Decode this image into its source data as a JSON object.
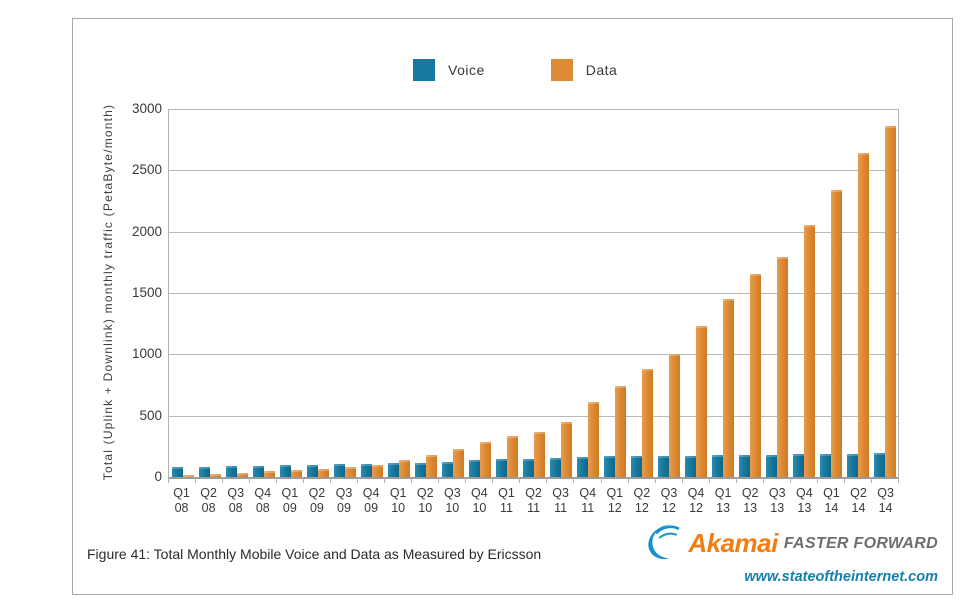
{
  "figure": {
    "caption": "Figure 41: Total Monthly Mobile Voice and Data as Measured by Ericsson"
  },
  "branding": {
    "logo_text": "Akamai",
    "tagline": "FASTER FORWARD",
    "url": "www.stateoftheinternet.com",
    "logo_orange": "#f07f13",
    "swoosh_blue": "#1592cb",
    "tagline_gray": "#6d6e71",
    "url_color": "#1580ad",
    "swoosh_icon": "akamai-wave-icon"
  },
  "chart_data": {
    "type": "bar",
    "title": "Figure 41: Total Monthly Mobile Voice and Data as Measured by Ericsson",
    "xlabel": "",
    "ylabel": "Total (Uplink + Downlink) monthly traffic (PetaByte/month)",
    "ylim": [
      0,
      3000
    ],
    "yticks": [
      0,
      500,
      1000,
      1500,
      2000,
      2500,
      3000
    ],
    "grid": true,
    "legend_position": "top-center",
    "categories": [
      "Q1 08",
      "Q2 08",
      "Q3 08",
      "Q4 08",
      "Q1 09",
      "Q2 09",
      "Q3 09",
      "Q4 09",
      "Q1 10",
      "Q2 10",
      "Q3 10",
      "Q4 10",
      "Q1 11",
      "Q2 11",
      "Q3 11",
      "Q4 11",
      "Q1 12",
      "Q2 12",
      "Q3 12",
      "Q4 12",
      "Q1 13",
      "Q2 13",
      "Q3 13",
      "Q4 13",
      "Q1 14",
      "Q2 14",
      "Q3 14"
    ],
    "series": [
      {
        "name": "Voice",
        "color": "#17799e",
        "values": [
          80,
          84,
          88,
          92,
          96,
          101,
          105,
          109,
          112,
          116,
          126,
          135,
          143,
          150,
          157,
          165,
          168,
          170,
          172,
          175,
          177,
          180,
          182,
          185,
          187,
          190,
          193
        ]
      },
      {
        "name": "Data",
        "color": "#dd8a36",
        "values": [
          20,
          28,
          36,
          45,
          55,
          68,
          83,
          100,
          140,
          183,
          230,
          287,
          335,
          370,
          450,
          615,
          740,
          880,
          1005,
          1230,
          1455,
          1655,
          1795,
          2055,
          2340,
          2640,
          2865
        ]
      }
    ]
  }
}
